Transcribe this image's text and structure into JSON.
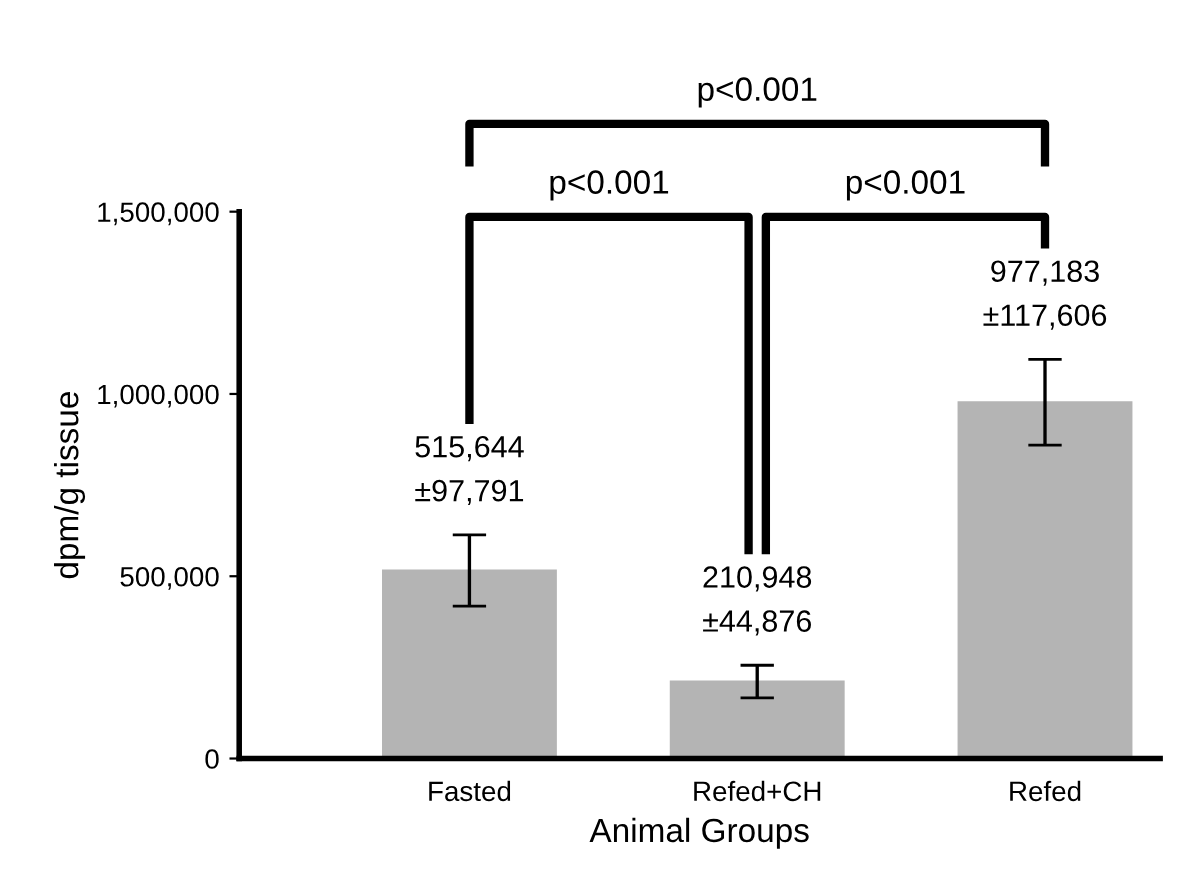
{
  "chart_data": {
    "type": "bar",
    "categories": [
      "Fasted",
      "Refed+CH",
      "Refed"
    ],
    "values": [
      515644,
      210948,
      977183
    ],
    "errors": [
      97791,
      44876,
      117606
    ],
    "value_labels": [
      "515,644\n±97,791",
      "210,948\n±44,876",
      "977,183\n±117,606"
    ],
    "color": "#b4b4b4",
    "xlabel": "Animal Groups",
    "ylabel": "dpm/g tissue",
    "ylim": [
      0,
      1500000
    ],
    "yticks": [
      {
        "value": 0,
        "label": "0"
      },
      {
        "value": 500000,
        "label": "500,000"
      },
      {
        "value": 1000000,
        "label": "1,000,000"
      },
      {
        "value": 1500000,
        "label": "1,500,000"
      }
    ],
    "annotations": [
      "p<0.001",
      "p<0.001",
      "p<0.001"
    ],
    "grid": false
  }
}
